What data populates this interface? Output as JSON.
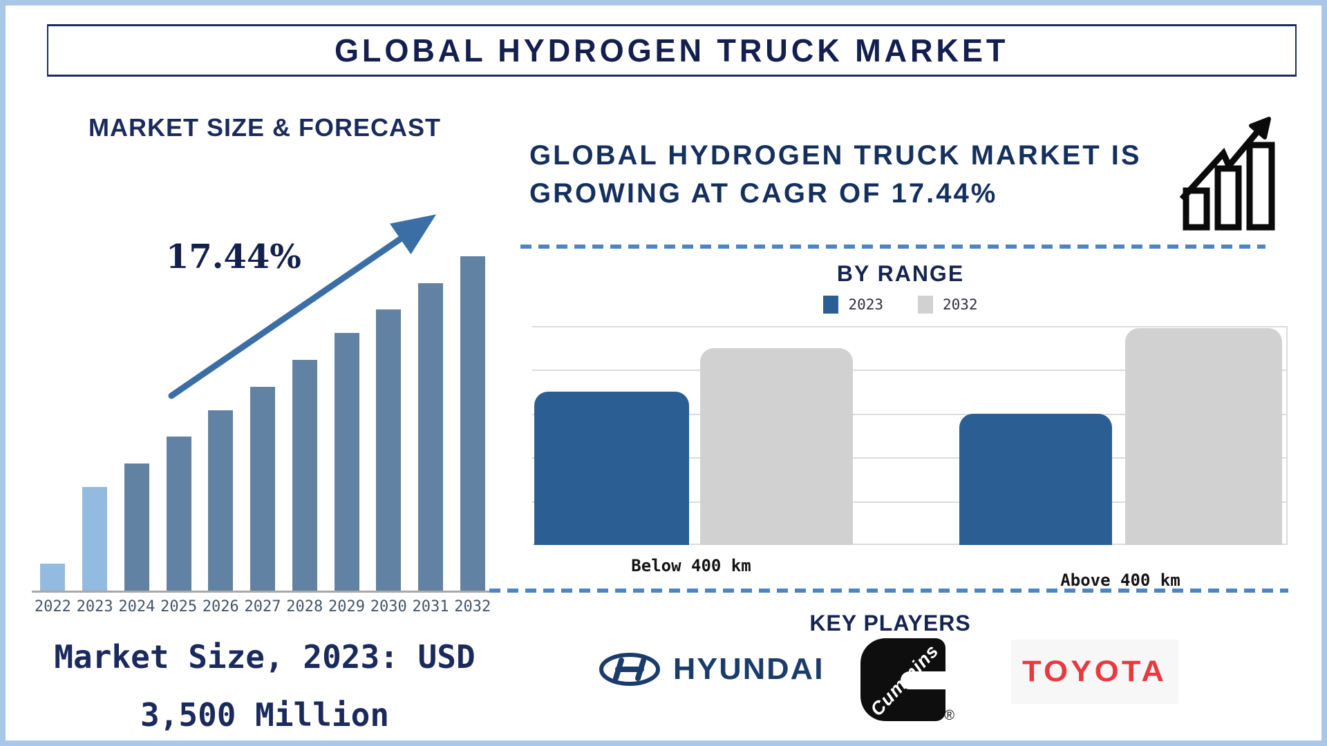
{
  "palette": {
    "frame_blue": "#A9C7E9",
    "navy_text": "#15234F",
    "steel_bar": "#6182A3",
    "light_blue_bar": "#93BADF",
    "arrow_blue": "#3A6EA5",
    "range_2023_bar": "#2B5F93",
    "range_2032_bar": "#D1D1D1",
    "dashed_line_blue": "#4C86C2",
    "baseline_gray": "#A8A8A8",
    "gridline_gray": "#DBDBDB",
    "toyota_red": "#E8393F",
    "hyundai_navy": "#1B3C6B",
    "cummins_black": "#0E0E0E"
  },
  "header": {
    "title": "GLOBAL HYDROGEN TRUCK MARKET"
  },
  "left_panel": {
    "heading": "MARKET SIZE & FORECAST",
    "cagr_label": "17.44%",
    "caption": "Market Size, 2023: USD\n3,500 Million"
  },
  "right_panel": {
    "headline": "GLOBAL HYDROGEN TRUCK MARKET IS\nGROWING AT CAGR OF 17.44%",
    "by_range_title": "BY RANGE",
    "key_players_title": "KEY PLAYERS",
    "players": {
      "hyundai_wordmark": "HYUNDAI",
      "cummins_wordmark": "Cummins",
      "cummins_reg_mark": "®",
      "toyota_wordmark": "TOYOTA"
    }
  },
  "chart_data": [
    {
      "type": "bar",
      "title": "MARKET SIZE & FORECAST",
      "categories": [
        "2022",
        "2023",
        "2024",
        "2025",
        "2026",
        "2027",
        "2028",
        "2029",
        "2030",
        "2031",
        "2032"
      ],
      "values": [
        8,
        31,
        38,
        46,
        54,
        61,
        69,
        77,
        84,
        92,
        100
      ],
      "units": "relative bar height, % of 2032 bar (y-axis unlabeled)",
      "bar_colors": [
        "#93BADF",
        "#93BADF",
        "#6182A3",
        "#6182A3",
        "#6182A3",
        "#6182A3",
        "#6182A3",
        "#6182A3",
        "#6182A3",
        "#6182A3",
        "#6182A3"
      ],
      "annotations": [
        "17.44%",
        "Market Size, 2023: USD 3,500 Million"
      ],
      "grid": false,
      "legend": false,
      "xlabel": "",
      "ylabel": ""
    },
    {
      "type": "bar",
      "title": "BY RANGE",
      "categories": [
        "Below 400 km",
        "Above 400 km"
      ],
      "series": [
        {
          "name": "2023",
          "values": [
            3.5,
            3.0
          ],
          "color": "#2B5F93"
        },
        {
          "name": "2032",
          "values": [
            4.5,
            4.95
          ],
          "color": "#D1D1D1"
        }
      ],
      "axis_max": 5,
      "units": "gridline units (y-axis unlabeled, 5 gridline intervals)",
      "grid": true,
      "legend_position": "top center",
      "xlabel": "",
      "ylabel": ""
    }
  ]
}
